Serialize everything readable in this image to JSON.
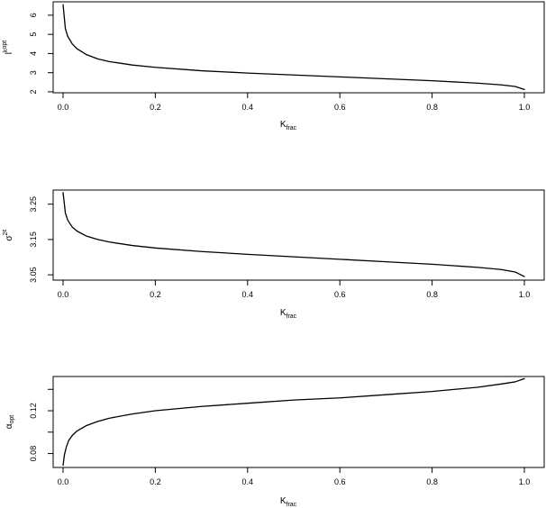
{
  "colors": {
    "background": "#ffffff",
    "ink": "#000000"
  },
  "chart_data": [
    {
      "type": "line",
      "title": "",
      "xlabel": "K",
      "xlabel_sub": "frac",
      "ylabel": "l",
      "ylabel_sup": "k",
      "ylabel_sub": "opt",
      "xlim": [
        0,
        1
      ],
      "ylim": [
        1.95,
        6.7
      ],
      "xticks": [
        0.0,
        0.2,
        0.4,
        0.6,
        0.8,
        1.0
      ],
      "xtick_labels": [
        "0.0",
        "0.2",
        "0.4",
        "0.6",
        "0.8",
        "1.0"
      ],
      "yticks": [
        2,
        3,
        4,
        5,
        6
      ],
      "ytick_labels": [
        "2",
        "3",
        "4",
        "5",
        "6"
      ],
      "grid": false,
      "series": [
        {
          "x": [
            0.0,
            0.005,
            0.01,
            0.02,
            0.03,
            0.05,
            0.075,
            0.1,
            0.15,
            0.2,
            0.3,
            0.4,
            0.5,
            0.6,
            0.7,
            0.8,
            0.9,
            0.95,
            0.98,
            1.0
          ],
          "values": [
            6.55,
            5.3,
            4.9,
            4.5,
            4.25,
            3.95,
            3.72,
            3.58,
            3.4,
            3.28,
            3.1,
            2.98,
            2.88,
            2.78,
            2.68,
            2.58,
            2.45,
            2.36,
            2.28,
            2.12
          ]
        }
      ]
    },
    {
      "type": "line",
      "title": "",
      "xlabel": "K",
      "xlabel_sub": "frac",
      "ylabel": "σ",
      "ylabel_sup": "2",
      "ylabel_sub": "ε",
      "xlim": [
        0,
        1
      ],
      "ylim": [
        3.035,
        3.29
      ],
      "xticks": [
        0.0,
        0.2,
        0.4,
        0.6,
        0.8,
        1.0
      ],
      "xtick_labels": [
        "0.0",
        "0.2",
        "0.4",
        "0.6",
        "0.8",
        "1.0"
      ],
      "yticks": [
        3.05,
        3.15,
        3.25
      ],
      "ytick_labels": [
        "3.05",
        "3.15",
        "3.25"
      ],
      "grid": false,
      "series": [
        {
          "x": [
            0.0,
            0.005,
            0.01,
            0.02,
            0.03,
            0.05,
            0.075,
            0.1,
            0.15,
            0.2,
            0.3,
            0.4,
            0.5,
            0.6,
            0.7,
            0.8,
            0.9,
            0.95,
            0.98,
            1.0
          ],
          "values": [
            3.283,
            3.225,
            3.205,
            3.185,
            3.174,
            3.16,
            3.15,
            3.143,
            3.133,
            3.126,
            3.116,
            3.108,
            3.101,
            3.094,
            3.087,
            3.08,
            3.071,
            3.065,
            3.058,
            3.045
          ]
        }
      ]
    },
    {
      "type": "line",
      "title": "",
      "xlabel": "K",
      "xlabel_sub": "frac",
      "ylabel": "α",
      "ylabel_sub": "opt",
      "xlim": [
        0,
        1
      ],
      "ylim": [
        0.067,
        0.152
      ],
      "xticks": [
        0.0,
        0.2,
        0.4,
        0.6,
        0.8,
        1.0
      ],
      "xtick_labels": [
        "0.0",
        "0.2",
        "0.4",
        "0.6",
        "0.8",
        "1.0"
      ],
      "yticks": [
        0.08,
        0.1,
        0.12,
        0.14
      ],
      "ytick_labels": [
        "0.08",
        "",
        "0.12",
        ""
      ],
      "grid": false,
      "series": [
        {
          "x": [
            0.0,
            0.003,
            0.007,
            0.012,
            0.02,
            0.03,
            0.05,
            0.075,
            0.1,
            0.15,
            0.2,
            0.3,
            0.4,
            0.5,
            0.6,
            0.7,
            0.8,
            0.9,
            0.95,
            0.98,
            1.0
          ],
          "values": [
            0.069,
            0.079,
            0.086,
            0.092,
            0.097,
            0.101,
            0.106,
            0.11,
            0.113,
            0.117,
            0.12,
            0.124,
            0.127,
            0.13,
            0.132,
            0.135,
            0.138,
            0.142,
            0.145,
            0.147,
            0.15
          ]
        }
      ]
    }
  ]
}
